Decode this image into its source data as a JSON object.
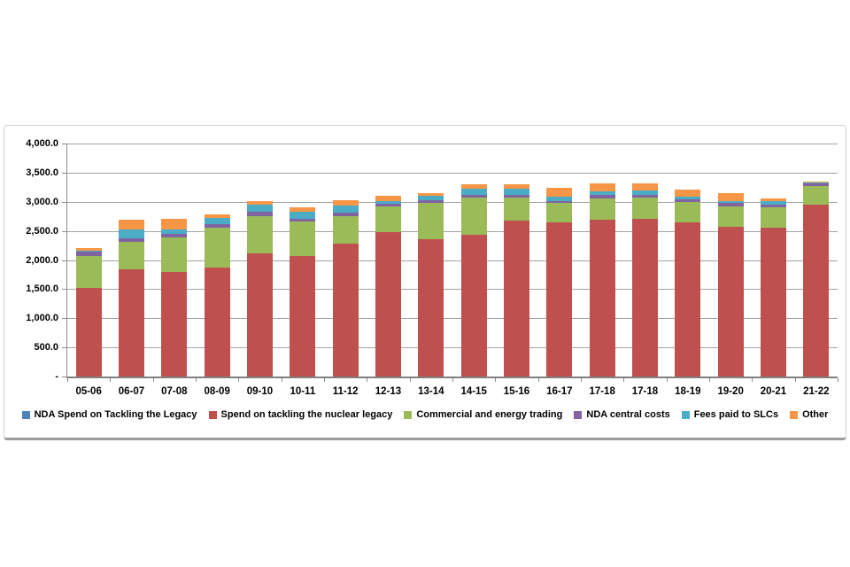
{
  "chart_data": {
    "type": "bar",
    "stacked": true,
    "title": "",
    "xlabel": "",
    "ylabel": "",
    "categories": [
      "05-06",
      "06-07",
      "07-08",
      "08-09",
      "09-10",
      "10-11",
      "11-12",
      "12-13",
      "13-14",
      "14-15",
      "15-16",
      "16-17",
      "17-18",
      "17-18",
      "18-19",
      "19-20",
      "20-21",
      "21-22"
    ],
    "series": [
      {
        "name": "NDA Spend on Tackling the Legacy",
        "color": "#4F81BD",
        "values": [
          0,
          0,
          0,
          0,
          0,
          0,
          0,
          0,
          0,
          0,
          0,
          0,
          0,
          0,
          0,
          0,
          0,
          0
        ]
      },
      {
        "name": "Spend on tackling the nuclear legacy",
        "color": "#C0504D",
        "values": [
          1525,
          1835,
          1800,
          1870,
          2110,
          2070,
          2280,
          2485,
          2355,
          2440,
          2675,
          2650,
          2690,
          2705,
          2640,
          2575,
          2555,
          2945
        ]
      },
      {
        "name": "Commercial and energy trading",
        "color": "#9BBB59",
        "values": [
          545,
          475,
          585,
          680,
          650,
          590,
          470,
          430,
          620,
          635,
          400,
          325,
          375,
          370,
          360,
          350,
          350,
          330
        ]
      },
      {
        "name": "NDA central costs",
        "color": "#8064A2",
        "values": [
          70,
          65,
          65,
          70,
          75,
          50,
          60,
          50,
          50,
          50,
          50,
          40,
          50,
          50,
          40,
          50,
          50,
          55
        ]
      },
      {
        "name": "Fees paid to SLCs",
        "color": "#4BACC6",
        "values": [
          15,
          145,
          70,
          100,
          115,
          125,
          125,
          50,
          80,
          100,
          100,
          75,
          60,
          65,
          50,
          30,
          60,
          5
        ]
      },
      {
        "name": "Other",
        "color": "#F79646",
        "values": [
          50,
          170,
          190,
          70,
          60,
          65,
          85,
          90,
          50,
          80,
          75,
          150,
          140,
          125,
          115,
          150,
          50,
          5
        ]
      }
    ],
    "y_axis": {
      "min": 0,
      "max": 4000,
      "step": 500,
      "tick_labels": [
        "4,000.0",
        "3,500.0",
        "3,000.0",
        "2,500.0",
        "2,000.0",
        "1,500.0",
        "1,000.0",
        "500.0",
        "-"
      ]
    },
    "grid": true,
    "legend_position": "bottom"
  },
  "colors": {
    "gridline": "#a3a3a3",
    "axis": "#8c8c8c",
    "baseline": "#808080",
    "text": "#000000",
    "frame_border": "#d3d3d3",
    "frame_border_bottom": "#9b9b9b",
    "background": "#ffffff"
  }
}
